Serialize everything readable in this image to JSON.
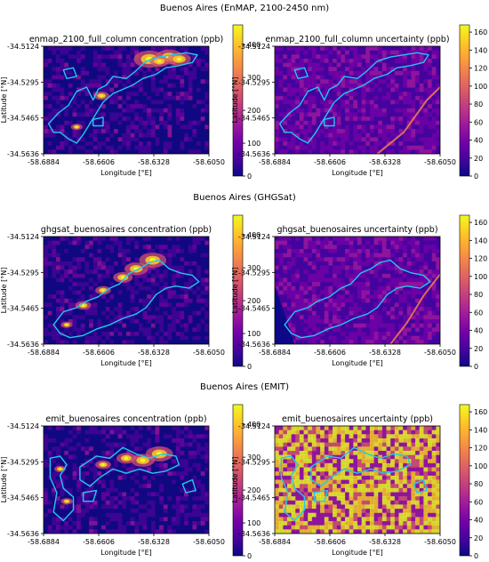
{
  "colors": {
    "cmap": [
      "#0d0887",
      "#46039f",
      "#7201a8",
      "#9c179e",
      "#bd3786",
      "#d8576b",
      "#ed7953",
      "#fb9f3a",
      "#fdca26",
      "#f0f921"
    ],
    "plume_outline": "#22c7f0",
    "background": "#ffffff"
  },
  "chart_data": [
    {
      "type": "heatmap",
      "figure_title": "Buenos Aires (EnMAP, 2100-2450 nm)",
      "panels": [
        {
          "title": "enmap_2100_full_column concentration (ppb)",
          "xlabel": "Longitude [°E]",
          "ylabel": "Latitude [°N]",
          "xticks": [
            "-58.6884",
            "-58.6606",
            "-58.6328",
            "-58.6050"
          ],
          "yticks": [
            "-34.5124",
            "-34.5295",
            "-34.5465",
            "-34.5636"
          ],
          "colorbar": {
            "min": 0,
            "max": 460,
            "ticks": [
              "0",
              "100",
              "200",
              "300",
              "400"
            ]
          }
        },
        {
          "title": "enmap_2100_full_column uncertainty (ppb)",
          "xlabel": "Longitude [°E]",
          "ylabel": "Latitude [°N]",
          "xticks": [
            "-58.6884",
            "-58.6606",
            "-58.6328",
            "-58.6050"
          ],
          "yticks": [
            "-34.5124",
            "-34.5295",
            "-34.5465",
            "-34.5636"
          ],
          "colorbar": {
            "min": 0,
            "max": 168,
            "ticks": [
              "0",
              "20",
              "40",
              "60",
              "80",
              "100",
              "120",
              "140",
              "160"
            ]
          }
        }
      ]
    },
    {
      "type": "heatmap",
      "figure_title": "Buenos Aires (GHGSat)",
      "panels": [
        {
          "title": "ghgsat_buenosaires concentration (ppb)",
          "xlabel": "Longitude [°E]",
          "ylabel": "Latitude [°N]",
          "xticks": [
            "-58.6884",
            "-58.6606",
            "-58.6328",
            "-58.6050"
          ],
          "yticks": [
            "-34.5124",
            "-34.5295",
            "-34.5465",
            "-34.5636"
          ],
          "colorbar": {
            "min": 0,
            "max": 460,
            "ticks": [
              "0",
              "100",
              "200",
              "300",
              "400"
            ]
          }
        },
        {
          "title": "ghgsat_buenosaires uncertainty (ppb)",
          "xlabel": "Longitude [°E]",
          "ylabel": "Latitude [°N]",
          "xticks": [
            "-58.6884",
            "-58.6606",
            "-58.6328",
            "-58.6050"
          ],
          "yticks": [
            "-34.5124",
            "-34.5295",
            "-34.5465",
            "-34.5636"
          ],
          "colorbar": {
            "min": 0,
            "max": 168,
            "ticks": [
              "0",
              "20",
              "40",
              "60",
              "80",
              "100",
              "120",
              "140",
              "160"
            ]
          }
        }
      ]
    },
    {
      "type": "heatmap",
      "figure_title": "Buenos Aires (EMIT)",
      "panels": [
        {
          "title": "emit_buenosaires concentration (ppb)",
          "xlabel": "Longitude [°E]",
          "ylabel": "Latitude [°N]",
          "xticks": [
            "-58.6884",
            "-58.6606",
            "-58.6328",
            "-58.6050"
          ],
          "yticks": [
            "-34.5124",
            "-34.5295",
            "-34.5465",
            "-34.5636"
          ],
          "colorbar": {
            "min": 0,
            "max": 460,
            "ticks": [
              "0",
              "100",
              "200",
              "300",
              "400"
            ]
          }
        },
        {
          "title": "emit_buenosaires uncertainty (ppb)",
          "xlabel": "Longitude [°E]",
          "ylabel": "Latitude [°N]",
          "xticks": [
            "-58.6884",
            "-58.6606",
            "-58.6328",
            "-58.6050"
          ],
          "yticks": [
            "-34.5124",
            "-34.5295",
            "-34.5465",
            "-34.5636"
          ],
          "colorbar": {
            "min": 0,
            "max": 168,
            "ticks": [
              "0",
              "20",
              "40",
              "60",
              "80",
              "100",
              "120",
              "140",
              "160"
            ]
          }
        }
      ]
    }
  ]
}
